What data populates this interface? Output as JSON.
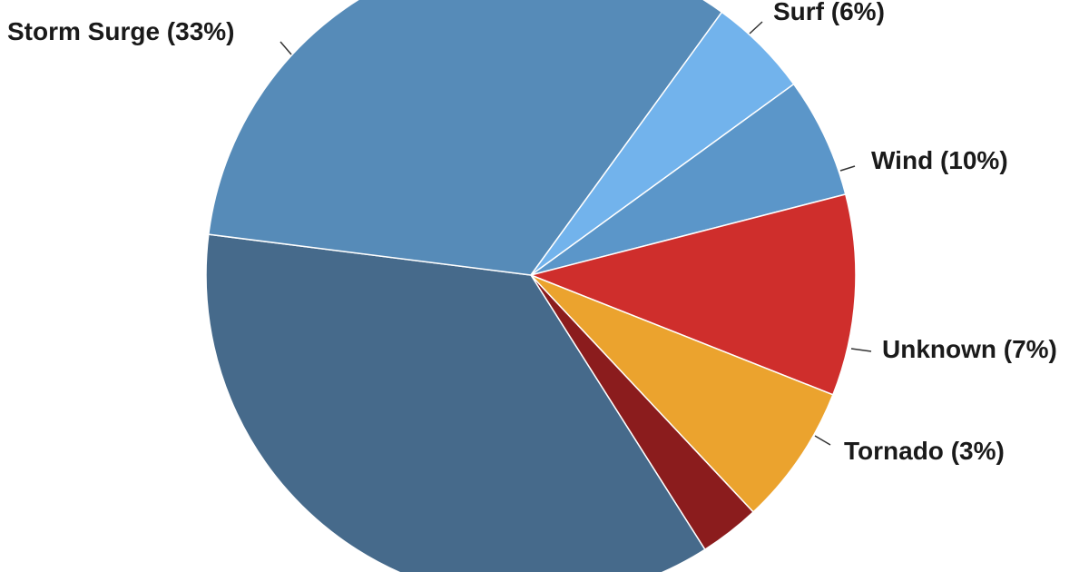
{
  "chart_data": {
    "type": "pie",
    "title": "",
    "slices": [
      {
        "label": "Surf (6%)",
        "name": "Surf",
        "value": 6,
        "color": "#5b96c9"
      },
      {
        "label": "Wind (10%)",
        "name": "Wind",
        "value": 10,
        "color": "#cf2e2c"
      },
      {
        "label": "Unknown (7%)",
        "name": "Unknown",
        "value": 7,
        "color": "#eba32e"
      },
      {
        "label": "Tornado (3%)",
        "name": "Tornado",
        "value": 3,
        "color": "#8b1c1d"
      },
      {
        "label": "",
        "name": "",
        "value": 36,
        "color": "#466a8b"
      },
      {
        "label": "Storm Surge (33%)",
        "name": "Storm Surge",
        "value": 33,
        "color": "#568bb8"
      },
      {
        "label": "",
        "name": "",
        "value": 5,
        "color": "#72b3ec"
      }
    ],
    "start_angle_deg": -36,
    "direction": "clockwise",
    "legend": "none"
  }
}
